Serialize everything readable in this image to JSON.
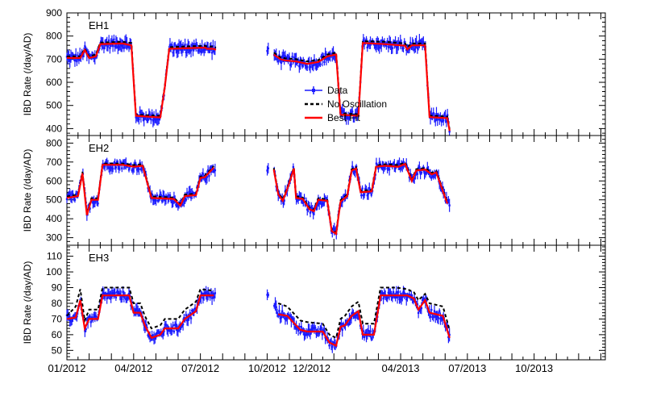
{
  "chart_data": {
    "type": "line",
    "x_axis": {
      "tick_labels": [
        "01/2012",
        "04/2012",
        "07/2012",
        "10/2012",
        "12/2012",
        "04/2013",
        "07/2013",
        "10/2013"
      ],
      "tick_months": [
        0,
        3,
        6,
        9,
        11,
        15,
        18,
        21
      ],
      "range_months": [
        0,
        24.2
      ]
    },
    "legend": {
      "placement": "center (top panel)",
      "entries": [
        {
          "label": "Data",
          "color": "#1a1aff",
          "style": "markers-with-error-bars"
        },
        {
          "label": "No Oscillation",
          "color": "#000000",
          "style": "dashed"
        },
        {
          "label": "Best Fit",
          "color": "#ff0000",
          "style": "solid"
        }
      ]
    },
    "panels": [
      {
        "name": "EH1",
        "ylabel": "IBD Rate (/day/AD)",
        "ylim": [
          370,
          900
        ],
        "yticks": [
          400,
          500,
          600,
          700,
          800,
          900
        ],
        "best_fit": [
          [
            0,
            705
          ],
          [
            0.6,
            705
          ],
          [
            0.8,
            740
          ],
          [
            1.0,
            705
          ],
          [
            1.3,
            712
          ],
          [
            1.5,
            765
          ],
          [
            2.5,
            768
          ],
          [
            2.9,
            760
          ],
          [
            3.1,
            455
          ],
          [
            4.2,
            448
          ],
          [
            4.4,
            580
          ],
          [
            4.6,
            745
          ],
          [
            6.2,
            750
          ],
          [
            6.3,
            745
          ],
          [
            6.6,
            745
          ],
          [
            6.7,
            740
          ],
          [
            6.8,
            718
          ],
          [
            7.0,
            720
          ],
          [
            7.3,
            700
          ],
          [
            7.5,
            695
          ],
          [
            8.0,
            690
          ],
          [
            8.5,
            680
          ],
          [
            9.0,
            688
          ],
          [
            9.4,
            712
          ],
          [
            9.8,
            720
          ],
          [
            10.0,
            460
          ],
          [
            10.8,
            455
          ],
          [
            11.0,
            770
          ],
          [
            12.0,
            765
          ],
          [
            12.9,
            758
          ],
          [
            13.0,
            742
          ],
          [
            13.2,
            760
          ],
          [
            13.8,
            760
          ],
          [
            14.0,
            450
          ],
          [
            14.8,
            445
          ],
          [
            14.9,
            390
          ]
        ],
        "no_oscillation": [
          [
            0,
            712
          ],
          [
            0.6,
            712
          ],
          [
            0.8,
            745
          ],
          [
            1.0,
            712
          ],
          [
            1.3,
            720
          ],
          [
            1.5,
            772
          ],
          [
            2.5,
            775
          ],
          [
            2.9,
            770
          ],
          [
            3.1,
            460
          ],
          [
            4.2,
            455
          ],
          [
            4.4,
            585
          ],
          [
            4.6,
            752
          ],
          [
            6.2,
            758
          ],
          [
            6.3,
            755
          ],
          [
            6.6,
            755
          ],
          [
            6.7,
            750
          ],
          [
            6.8,
            726
          ],
          [
            7.0,
            728
          ],
          [
            7.3,
            708
          ],
          [
            7.5,
            704
          ],
          [
            8.0,
            700
          ],
          [
            8.5,
            690
          ],
          [
            9.0,
            696
          ],
          [
            9.4,
            720
          ],
          [
            9.8,
            728
          ],
          [
            10.0,
            466
          ],
          [
            10.8,
            462
          ],
          [
            11.0,
            778
          ],
          [
            12.0,
            775
          ],
          [
            12.9,
            768
          ],
          [
            13.0,
            752
          ],
          [
            13.2,
            768
          ],
          [
            13.8,
            768
          ],
          [
            14.0,
            456
          ],
          [
            14.8,
            452
          ],
          [
            14.9,
            396
          ]
        ]
      },
      {
        "name": "EH2",
        "ylabel": "IBD Rate (/day/AD)",
        "ylim": [
          260,
          840
        ],
        "yticks": [
          300,
          400,
          500,
          600,
          700,
          800
        ],
        "best_fit": [
          [
            0,
            510
          ],
          [
            0.5,
            520
          ],
          [
            0.7,
            640
          ],
          [
            0.9,
            420
          ],
          [
            1.1,
            500
          ],
          [
            1.4,
            500
          ],
          [
            1.6,
            685
          ],
          [
            2.5,
            685
          ],
          [
            3.0,
            675
          ],
          [
            3.4,
            680
          ],
          [
            3.8,
            510
          ],
          [
            4.8,
            505
          ],
          [
            5.1,
            470
          ],
          [
            5.3,
            520
          ],
          [
            5.8,
            525
          ],
          [
            6.0,
            615
          ],
          [
            6.2,
            620
          ],
          [
            6.6,
            670
          ],
          [
            7.0,
            660
          ],
          [
            7.2,
            530
          ],
          [
            7.4,
            495
          ],
          [
            7.6,
            555
          ],
          [
            7.9,
            665
          ],
          [
            8.0,
            510
          ],
          [
            8.3,
            505
          ],
          [
            8.6,
            450
          ],
          [
            8.8,
            440
          ],
          [
            9.0,
            500
          ],
          [
            9.4,
            495
          ],
          [
            9.6,
            335
          ],
          [
            9.8,
            320
          ],
          [
            10.0,
            490
          ],
          [
            10.3,
            520
          ],
          [
            10.5,
            655
          ],
          [
            10.7,
            665
          ],
          [
            10.9,
            540
          ],
          [
            11.4,
            545
          ],
          [
            11.6,
            675
          ],
          [
            12.0,
            680
          ],
          [
            12.6,
            675
          ],
          [
            12.9,
            690
          ],
          [
            13.2,
            600
          ],
          [
            13.4,
            655
          ],
          [
            13.8,
            660
          ],
          [
            14.1,
            635
          ],
          [
            14.3,
            645
          ],
          [
            14.8,
            480
          ]
        ],
        "no_oscillation": [
          [
            0,
            518
          ],
          [
            0.5,
            528
          ],
          [
            0.7,
            648
          ],
          [
            0.9,
            428
          ],
          [
            1.1,
            508
          ],
          [
            1.4,
            508
          ],
          [
            1.6,
            692
          ],
          [
            2.5,
            692
          ],
          [
            3.0,
            684
          ],
          [
            3.4,
            688
          ],
          [
            3.8,
            518
          ],
          [
            4.8,
            512
          ],
          [
            5.1,
            478
          ],
          [
            5.3,
            528
          ],
          [
            5.8,
            532
          ],
          [
            6.0,
            622
          ],
          [
            6.2,
            628
          ],
          [
            6.6,
            678
          ],
          [
            7.0,
            668
          ],
          [
            7.2,
            538
          ],
          [
            7.4,
            503
          ],
          [
            7.6,
            562
          ],
          [
            7.9,
            672
          ],
          [
            8.0,
            518
          ],
          [
            8.3,
            512
          ],
          [
            8.6,
            458
          ],
          [
            8.8,
            448
          ],
          [
            9.0,
            508
          ],
          [
            9.4,
            503
          ],
          [
            9.6,
            343
          ],
          [
            9.8,
            328
          ],
          [
            10.0,
            498
          ],
          [
            10.3,
            528
          ],
          [
            10.5,
            662
          ],
          [
            10.7,
            672
          ],
          [
            10.9,
            548
          ],
          [
            11.4,
            552
          ],
          [
            11.6,
            682
          ],
          [
            12.0,
            688
          ],
          [
            12.6,
            684
          ],
          [
            12.9,
            698
          ],
          [
            13.2,
            608
          ],
          [
            13.4,
            662
          ],
          [
            13.8,
            668
          ],
          [
            14.1,
            642
          ],
          [
            14.3,
            652
          ],
          [
            14.8,
            488
          ]
        ]
      },
      {
        "name": "EH3",
        "ylabel": "IBD Rate (/day/AD)",
        "ylim": [
          44,
          117
        ],
        "yticks": [
          50,
          60,
          70,
          80,
          90,
          100,
          110
        ],
        "best_fit": [
          [
            0,
            70
          ],
          [
            0.4,
            71
          ],
          [
            0.6,
            82
          ],
          [
            0.8,
            64
          ],
          [
            1.0,
            70
          ],
          [
            1.4,
            70
          ],
          [
            1.6,
            85
          ],
          [
            2.8,
            85
          ],
          [
            3.0,
            74
          ],
          [
            3.3,
            74
          ],
          [
            3.5,
            66
          ],
          [
            3.8,
            58
          ],
          [
            4.2,
            60
          ],
          [
            4.4,
            64
          ],
          [
            5.0,
            64
          ],
          [
            5.3,
            70
          ],
          [
            5.6,
            73
          ],
          [
            5.8,
            75
          ],
          [
            6.0,
            85
          ],
          [
            6.6,
            85
          ],
          [
            6.9,
            84
          ],
          [
            7.2,
            73
          ],
          [
            7.6,
            72
          ],
          [
            8.2,
            63
          ],
          [
            8.5,
            62
          ],
          [
            9.2,
            62
          ],
          [
            9.5,
            55
          ],
          [
            9.8,
            53
          ],
          [
            10.0,
            65
          ],
          [
            10.2,
            66
          ],
          [
            10.5,
            72
          ],
          [
            10.8,
            75
          ],
          [
            11.0,
            60
          ],
          [
            11.5,
            60
          ],
          [
            11.8,
            85
          ],
          [
            12.5,
            85
          ],
          [
            13.0,
            85
          ],
          [
            13.3,
            83
          ],
          [
            13.5,
            76
          ],
          [
            13.8,
            82
          ],
          [
            14.0,
            74
          ],
          [
            14.6,
            72
          ],
          [
            14.9,
            58
          ]
        ],
        "no_oscillation": [
          [
            0,
            72
          ],
          [
            0.4,
            78
          ],
          [
            0.6,
            89
          ],
          [
            0.8,
            69
          ],
          [
            1.0,
            76
          ],
          [
            1.4,
            76
          ],
          [
            1.6,
            90
          ],
          [
            2.8,
            90
          ],
          [
            3.0,
            80
          ],
          [
            3.3,
            80
          ],
          [
            3.5,
            72
          ],
          [
            3.8,
            64
          ],
          [
            4.2,
            66
          ],
          [
            4.4,
            70
          ],
          [
            5.0,
            70
          ],
          [
            5.3,
            76
          ],
          [
            5.6,
            79
          ],
          [
            5.8,
            81
          ],
          [
            6.0,
            89
          ],
          [
            6.6,
            88
          ],
          [
            6.9,
            86
          ],
          [
            7.2,
            80
          ],
          [
            7.6,
            78
          ],
          [
            8.2,
            69
          ],
          [
            8.5,
            68
          ],
          [
            9.2,
            67
          ],
          [
            9.5,
            60
          ],
          [
            9.8,
            58
          ],
          [
            10.0,
            70
          ],
          [
            10.2,
            72
          ],
          [
            10.5,
            78
          ],
          [
            10.8,
            81
          ],
          [
            11.0,
            67
          ],
          [
            11.5,
            67
          ],
          [
            11.8,
            90
          ],
          [
            12.5,
            90
          ],
          [
            13.0,
            89
          ],
          [
            13.3,
            87
          ],
          [
            13.5,
            82
          ],
          [
            13.8,
            86
          ],
          [
            14.0,
            80
          ],
          [
            14.6,
            78
          ],
          [
            14.9,
            63
          ]
        ]
      }
    ]
  }
}
